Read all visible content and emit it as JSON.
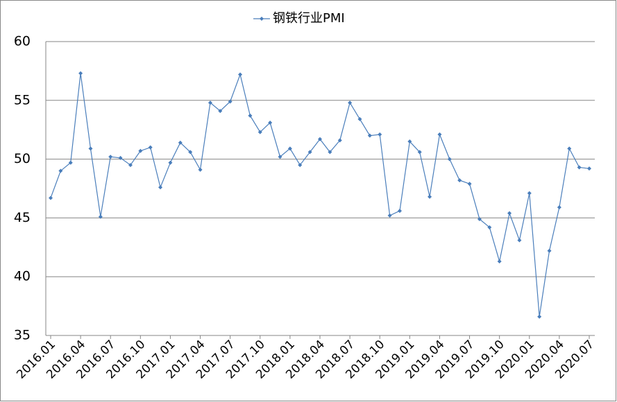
{
  "chart_data": {
    "type": "line",
    "categories": [
      "2016.01",
      null,
      null,
      "2016.04",
      null,
      null,
      "2016.07",
      null,
      null,
      "2016.10",
      null,
      null,
      "2017.01",
      null,
      null,
      "2017.04",
      null,
      null,
      "2017.07",
      null,
      null,
      "2017.10",
      null,
      null,
      "2018.01",
      null,
      null,
      "2018.04",
      null,
      null,
      "2018.07",
      null,
      null,
      "2018.10",
      null,
      null,
      "2019.01",
      null,
      null,
      "2019.04",
      null,
      null,
      "2019.07",
      null,
      null,
      "2019.10",
      null,
      null,
      "2020.01",
      null,
      null,
      "2020.04",
      null,
      null,
      "2020.07"
    ],
    "series": [
      {
        "name": "钢铁行业PMI",
        "color": "#4a7ebb",
        "values": [
          46.7,
          49.0,
          49.7,
          57.3,
          50.9,
          45.1,
          50.2,
          50.1,
          49.5,
          50.7,
          51.0,
          47.6,
          49.7,
          51.4,
          50.6,
          49.1,
          54.8,
          54.1,
          54.9,
          57.2,
          53.7,
          52.3,
          53.1,
          50.2,
          50.9,
          49.5,
          50.6,
          51.7,
          50.6,
          51.6,
          54.8,
          53.4,
          52.0,
          52.1,
          45.2,
          45.6,
          51.5,
          50.6,
          46.8,
          52.1,
          50.0,
          48.2,
          47.9,
          44.9,
          44.2,
          41.3,
          45.4,
          43.1,
          47.1,
          36.6,
          42.2,
          45.9,
          50.9,
          49.3,
          49.2
        ]
      }
    ],
    "ylim": [
      35,
      60
    ],
    "yticks": [
      35,
      40,
      45,
      50,
      55,
      60
    ],
    "grid": true,
    "legend": "top"
  }
}
